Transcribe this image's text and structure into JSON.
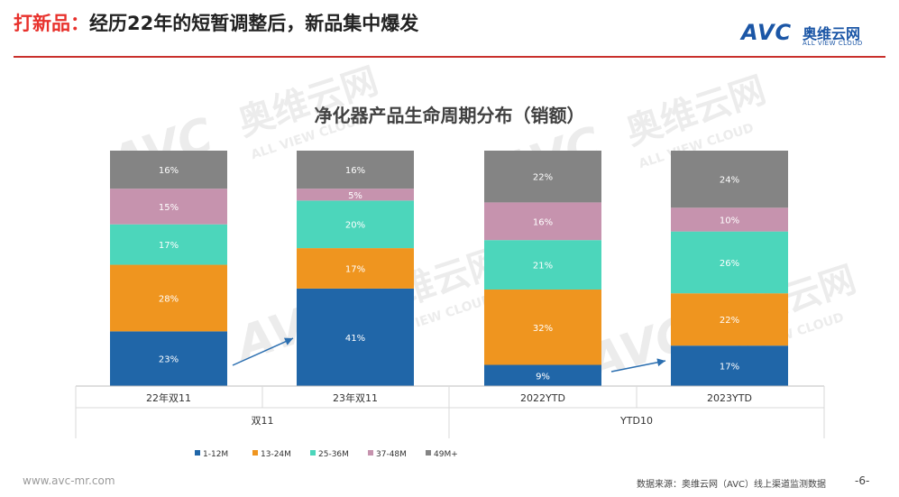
{
  "header": {
    "title_highlight": "打新品：",
    "title_rest": "经历22年的短暂调整后，新品集中爆发"
  },
  "logo": {
    "main": "AVC",
    "cn": "奥维云网",
    "en": "ALL VIEW CLOUD"
  },
  "watermark": {
    "main": "AVC",
    "cn": "奥维云网",
    "en": "ALL VIEW CLOUD"
  },
  "footer": {
    "website": "www.avc-mr.com",
    "source": "数据来源：奥维云网（AVC）线上渠道监测数据",
    "page": "-6-"
  },
  "chart_data": {
    "type": "bar",
    "stacked": true,
    "percent": true,
    "title": "净化器产品生命周期分布（销额）",
    "categories": [
      "22年双11",
      "23年双11",
      "2022YTD",
      "2023YTD"
    ],
    "groups": [
      {
        "label": "双11",
        "categories": [
          "22年双11",
          "23年双11"
        ]
      },
      {
        "label": "YTD10",
        "categories": [
          "2022YTD",
          "2023YTD"
        ]
      }
    ],
    "series": [
      {
        "name": "1-12M",
        "color": "#2066a8",
        "values": [
          23,
          41,
          9,
          17
        ]
      },
      {
        "name": "13-24M",
        "color": "#ef951f",
        "values": [
          28,
          17,
          32,
          22
        ]
      },
      {
        "name": "25-36M",
        "color": "#4cd6bb",
        "values": [
          17,
          20,
          21,
          26
        ]
      },
      {
        "name": "37-48M",
        "color": "#c693ae",
        "values": [
          15,
          5,
          16,
          10
        ]
      },
      {
        "name": "49M+",
        "color": "#848484",
        "values": [
          16,
          16,
          22,
          24
        ]
      }
    ],
    "ylim": [
      0,
      100
    ],
    "legend_position": "bottom",
    "grid": false,
    "annotations": [
      "arrow from 22年双11 to 23年双11",
      "arrow from 2022YTD to 2023YTD"
    ]
  }
}
